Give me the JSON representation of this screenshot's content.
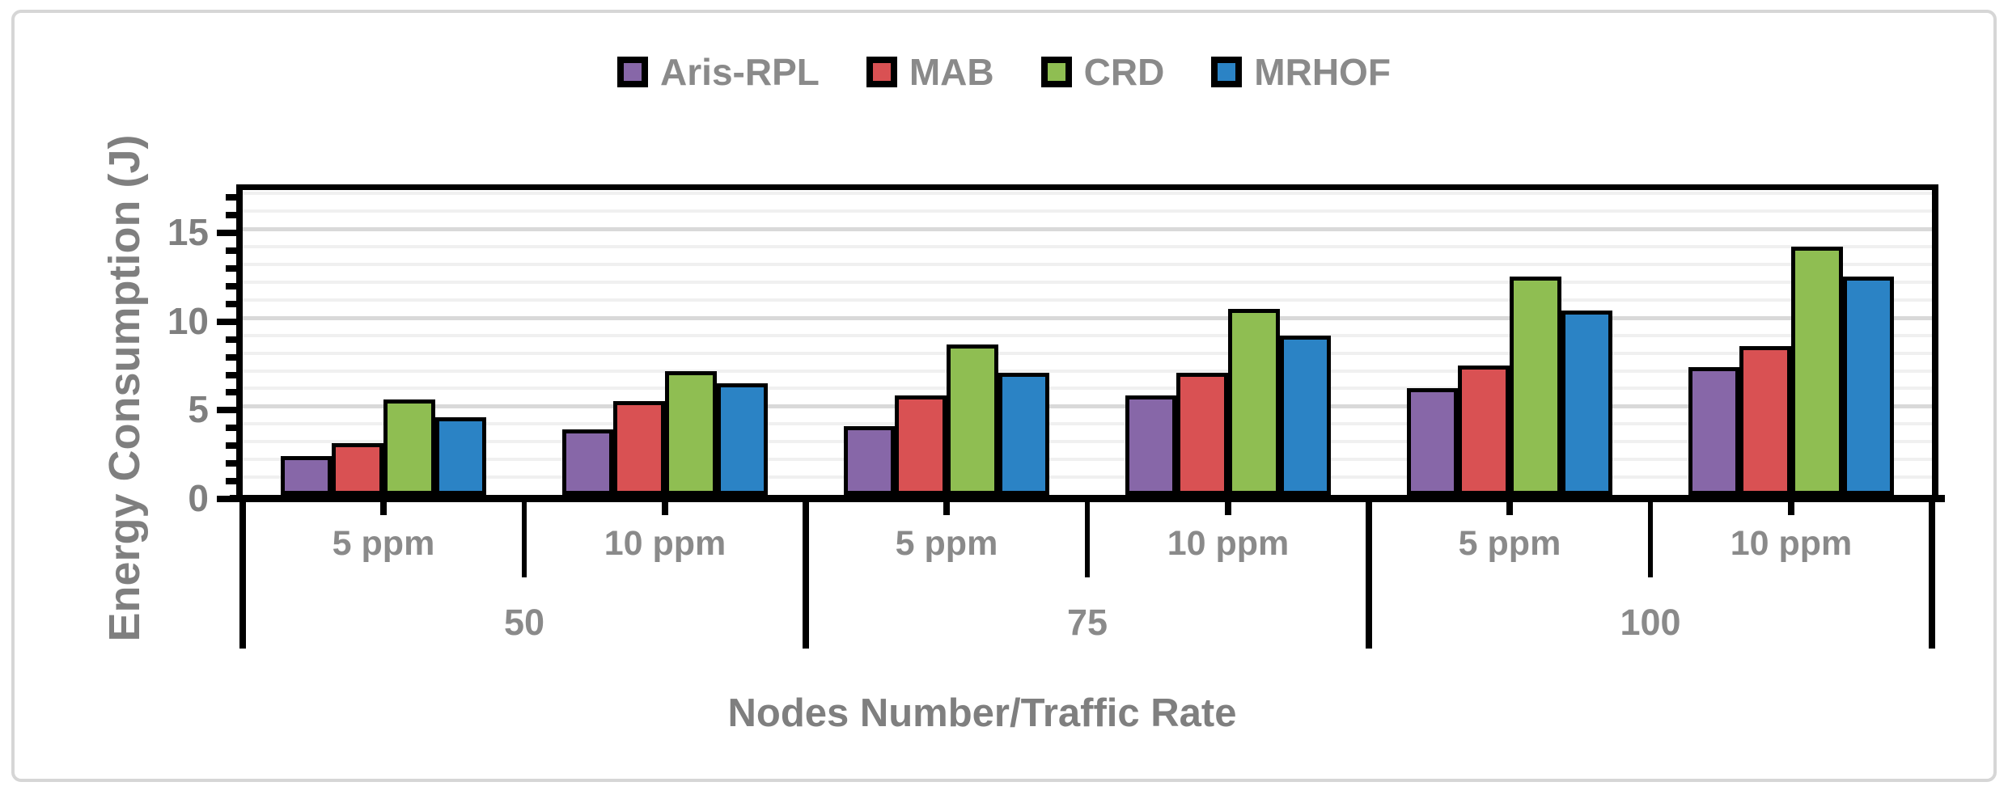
{
  "figure": {
    "background": "#ffffff",
    "border_color": "#d6d6d6"
  },
  "chart_data": {
    "type": "bar",
    "title": "",
    "ylabel": "Energy Consumption (J)",
    "xlabel": "Nodes Number/Traffic Rate",
    "ylim": [
      0,
      17.2
    ],
    "y_major_ticks": [
      0,
      5,
      10,
      15
    ],
    "y_minor_step": 1,
    "grid": {
      "horizontal": true,
      "minor_color": "#f0f0f0",
      "major_color": "#d9d9d9"
    },
    "legend_position": "top-center",
    "categories_level1": [
      "5 ppm",
      "10 ppm",
      "5 ppm",
      "10 ppm",
      "5 ppm",
      "10 ppm"
    ],
    "categories_level2": [
      {
        "label": "50",
        "span": 2
      },
      {
        "label": "75",
        "span": 2
      },
      {
        "label": "100",
        "span": 2
      }
    ],
    "series": [
      {
        "name": "Aris-RPL",
        "color": "#8767a8",
        "values": [
          2.2,
          3.7,
          3.9,
          5.6,
          6.0,
          7.2
        ]
      },
      {
        "name": "MAB",
        "color": "#d95153",
        "values": [
          2.9,
          5.3,
          5.6,
          6.9,
          7.3,
          8.4
        ]
      },
      {
        "name": "CRD",
        "color": "#8fbe52",
        "values": [
          5.4,
          7.0,
          8.5,
          10.5,
          12.3,
          14.0
        ]
      },
      {
        "name": "MRHOF",
        "color": "#2b83c5",
        "values": [
          4.4,
          6.3,
          6.9,
          9.0,
          10.4,
          12.3
        ]
      }
    ]
  }
}
